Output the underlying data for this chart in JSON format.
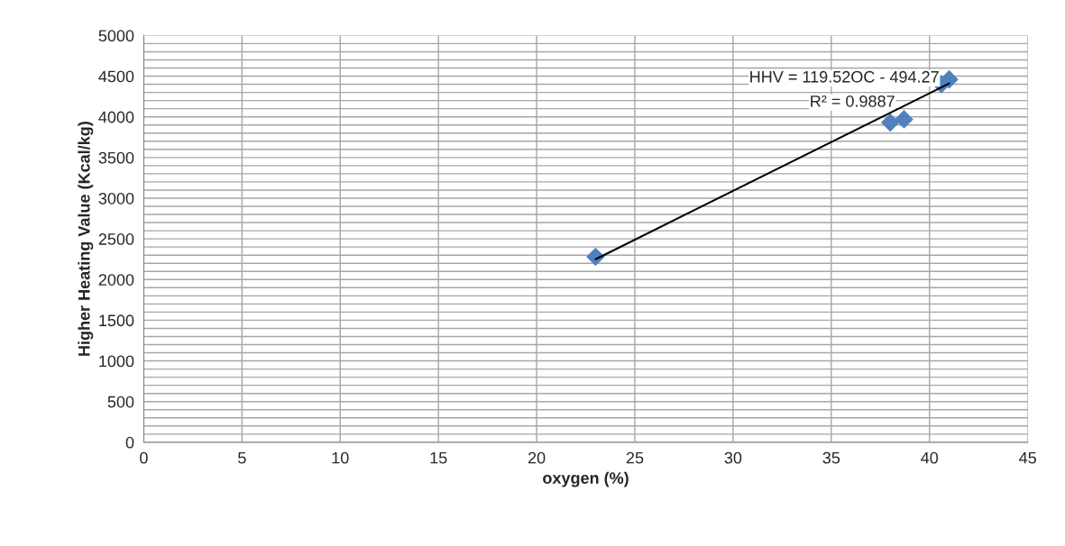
{
  "chart_data": {
    "type": "scatter",
    "xlabel": "oxygen (%)",
    "ylabel": "Higher Heating Value (Kcal/kg)",
    "series": [
      {
        "color": "#4f81bd",
        "marker": "diamond",
        "x": [
          23,
          38.0,
          38.7,
          40.6,
          41.0
        ],
        "values": [
          2280,
          3930,
          3970,
          4400,
          4460
        ]
      },
      {
        "type": "line",
        "color": "#000000",
        "marker": "none",
        "x": [
          23,
          41
        ],
        "values": [
          2250,
          4410
        ]
      }
    ],
    "annotations": [
      "HHV = 119.52OC - 494.27",
      "R² = 0.9887"
    ],
    "xlim": [
      0,
      45
    ],
    "xticks": [
      0,
      5,
      10,
      15,
      20,
      25,
      30,
      35,
      40,
      45
    ],
    "ylim": [
      0,
      5000
    ],
    "yticks": [
      0,
      500,
      1000,
      1500,
      2000,
      2500,
      3000,
      3500,
      4000,
      4500,
      5000
    ],
    "grid": true,
    "legend": false
  }
}
